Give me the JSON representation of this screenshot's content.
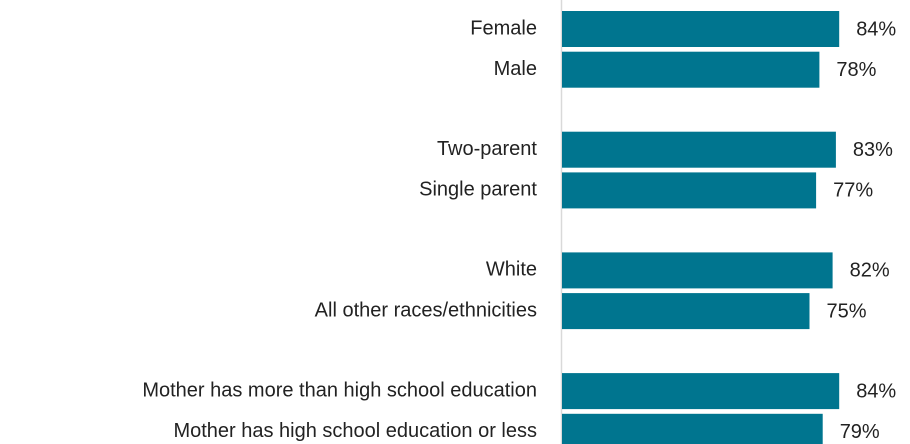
{
  "chart_data": {
    "type": "bar",
    "orientation": "horizontal",
    "categories": [
      "Female",
      "Male",
      "Two-parent",
      "Single parent",
      "White",
      "All other races/ethnicities",
      "Mother has more than high school education",
      "Mother has high school education or less"
    ],
    "values": [
      84,
      78,
      83,
      77,
      82,
      75,
      84,
      79
    ],
    "value_labels": [
      "84%",
      "78%",
      "83%",
      "77%",
      "82%",
      "75%",
      "84%",
      "79%"
    ],
    "color": "#00758f",
    "xlim": [
      0,
      100
    ]
  }
}
